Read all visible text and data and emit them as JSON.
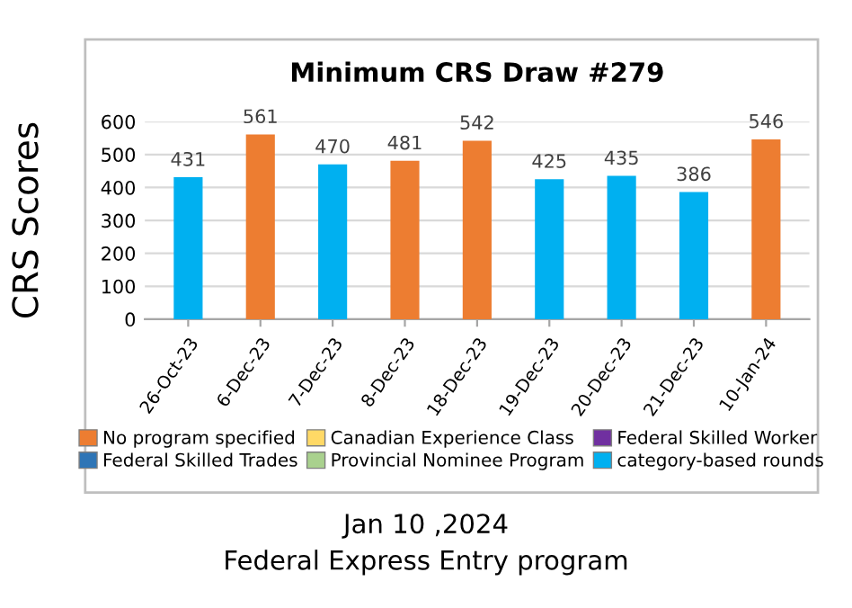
{
  "chart_data": {
    "type": "bar",
    "title": "Minimum CRS Draw #279",
    "ylabel": "CRS Scores",
    "categories": [
      "26-Oct-23",
      "6-Dec-23",
      "7-Dec-23",
      "8-Dec-23",
      "18-Dec-23",
      "19-Dec-23",
      "20-Dec-23",
      "21-Dec-23",
      "10-Jan-24"
    ],
    "series": [
      {
        "name": "No program specified",
        "color": "#ed7d31",
        "values": [
          null,
          561,
          null,
          481,
          542,
          null,
          null,
          null,
          546
        ]
      },
      {
        "name": "Canadian Experience Class",
        "color": "#ffd966",
        "values": [
          null,
          null,
          null,
          null,
          null,
          null,
          null,
          null,
          null
        ]
      },
      {
        "name": "Federal Skilled Worker",
        "color": "#7030a0",
        "values": [
          null,
          null,
          null,
          null,
          null,
          null,
          null,
          null,
          null
        ]
      },
      {
        "name": "Federal Skilled Trades",
        "color": "#2e75b6",
        "values": [
          null,
          null,
          null,
          null,
          null,
          null,
          null,
          null,
          null
        ]
      },
      {
        "name": "Provincial Nominee Program",
        "color": "#a9d18e",
        "values": [
          null,
          null,
          null,
          null,
          null,
          null,
          null,
          null,
          null
        ]
      },
      {
        "name": "category-based rounds",
        "color": "#00b0f0",
        "values": [
          431,
          null,
          470,
          null,
          null,
          425,
          435,
          386,
          null
        ]
      }
    ],
    "ylim": [
      0,
      600
    ],
    "yticks": [
      0,
      100,
      200,
      300,
      400,
      500,
      600
    ],
    "grid": "y",
    "data_labels": true,
    "legend": "bottom",
    "annotations": [
      "Jan 10 ,2024",
      "Federal Express Entry program"
    ]
  }
}
